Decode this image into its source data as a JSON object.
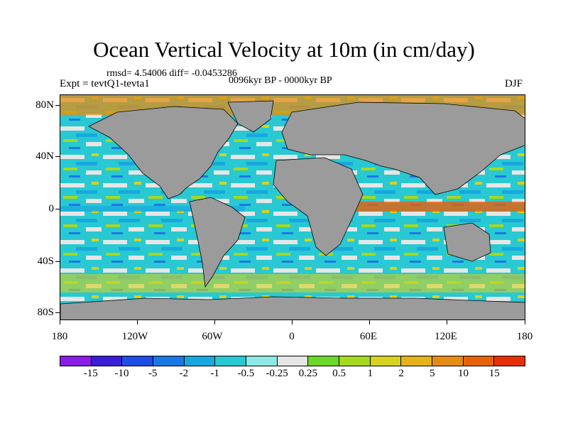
{
  "header": {
    "title": "Ocean Vertical Velocity at 10m (in cm/day)",
    "stats": "rmsd= 4.54006 diff= -0.0453286",
    "period": "0096kyr BP - 0000kyr BP",
    "experiment": "Expt = tevtQ1-tevta1",
    "season": "DJF"
  },
  "map": {
    "land_color": "#9b9b9b",
    "lat_labels": [
      "80N",
      "40N",
      "0",
      "40S",
      "80S"
    ],
    "lon_labels": [
      "180",
      "120W",
      "60W",
      "0",
      "60E",
      "120E",
      "180"
    ]
  },
  "colorbar": {
    "colors": [
      "#8a1ee6",
      "#3a1fd6",
      "#1f4ee6",
      "#1a78e6",
      "#17a8e0",
      "#28c9d2",
      "#8de8e6",
      "#e6e6e6",
      "#6bd82a",
      "#a6d81e",
      "#d6d21e",
      "#e6b21a",
      "#e68c12",
      "#e6620a",
      "#e6300a"
    ],
    "labels": [
      "-15",
      "-10",
      "-5",
      "-2",
      "-1",
      "-0.5",
      "-0.25",
      "0.25",
      "0.5",
      "1",
      "2",
      "5",
      "10",
      "15"
    ]
  }
}
